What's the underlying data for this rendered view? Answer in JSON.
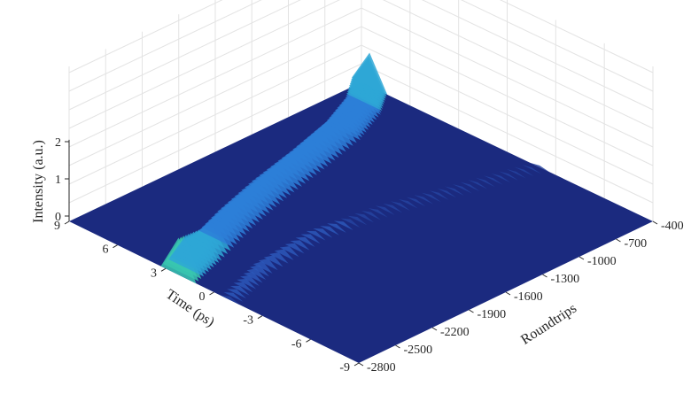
{
  "chart_data": {
    "type": "surface",
    "title": "",
    "xlabel": "Time (ps)",
    "ylabel": "Roundtrips",
    "zlabel": "Intensity (a.u.)",
    "time_ticks": [
      "9",
      "6",
      "3",
      "0",
      "-3",
      "-6",
      "-9"
    ],
    "roundtrip_ticks": [
      "-400",
      "-700",
      "-1000",
      "-1300",
      "-1600",
      "-1900",
      "-2200",
      "-2500",
      "-2800"
    ],
    "intensity_ticks": [
      "0",
      "1",
      "2"
    ],
    "xlim": [
      -9,
      9
    ],
    "ylim": [
      -2800,
      -400
    ],
    "zlim": [
      0,
      2
    ],
    "grid": true,
    "colormap": "parula",
    "floor_color": "#1b2a7f",
    "features": [
      {
        "name": "primary soliton trace",
        "points": [
          {
            "roundtrip": -400,
            "time": 8.5,
            "peak": 0.9
          },
          {
            "roundtrip": -600,
            "time": 7.4,
            "peak": 0.55
          },
          {
            "roundtrip": -900,
            "time": 6.4,
            "peak": 0.6
          },
          {
            "roundtrip": -1300,
            "time": 5.6,
            "peak": 0.5
          },
          {
            "roundtrip": -1700,
            "time": 4.9,
            "peak": 0.45
          },
          {
            "roundtrip": -2100,
            "time": 4.0,
            "peak": 0.5
          },
          {
            "roundtrip": -2500,
            "time": 2.9,
            "peak": 0.65
          },
          {
            "roundtrip": -2800,
            "time": 2.2,
            "peak": 1.0
          }
        ]
      },
      {
        "name": "secondary weak trace",
        "points": [
          {
            "roundtrip": -400,
            "time": -2.0,
            "peak": 0.05
          },
          {
            "roundtrip": -900,
            "time": -1.0,
            "peak": 0.06
          },
          {
            "roundtrip": -1400,
            "time": 0.0,
            "peak": 0.08
          },
          {
            "roundtrip": -1900,
            "time": 0.5,
            "peak": 0.12
          },
          {
            "roundtrip": -2400,
            "time": 0.0,
            "peak": 0.2
          },
          {
            "roundtrip": -2800,
            "time": -1.0,
            "peak": 0.1
          }
        ]
      }
    ]
  }
}
